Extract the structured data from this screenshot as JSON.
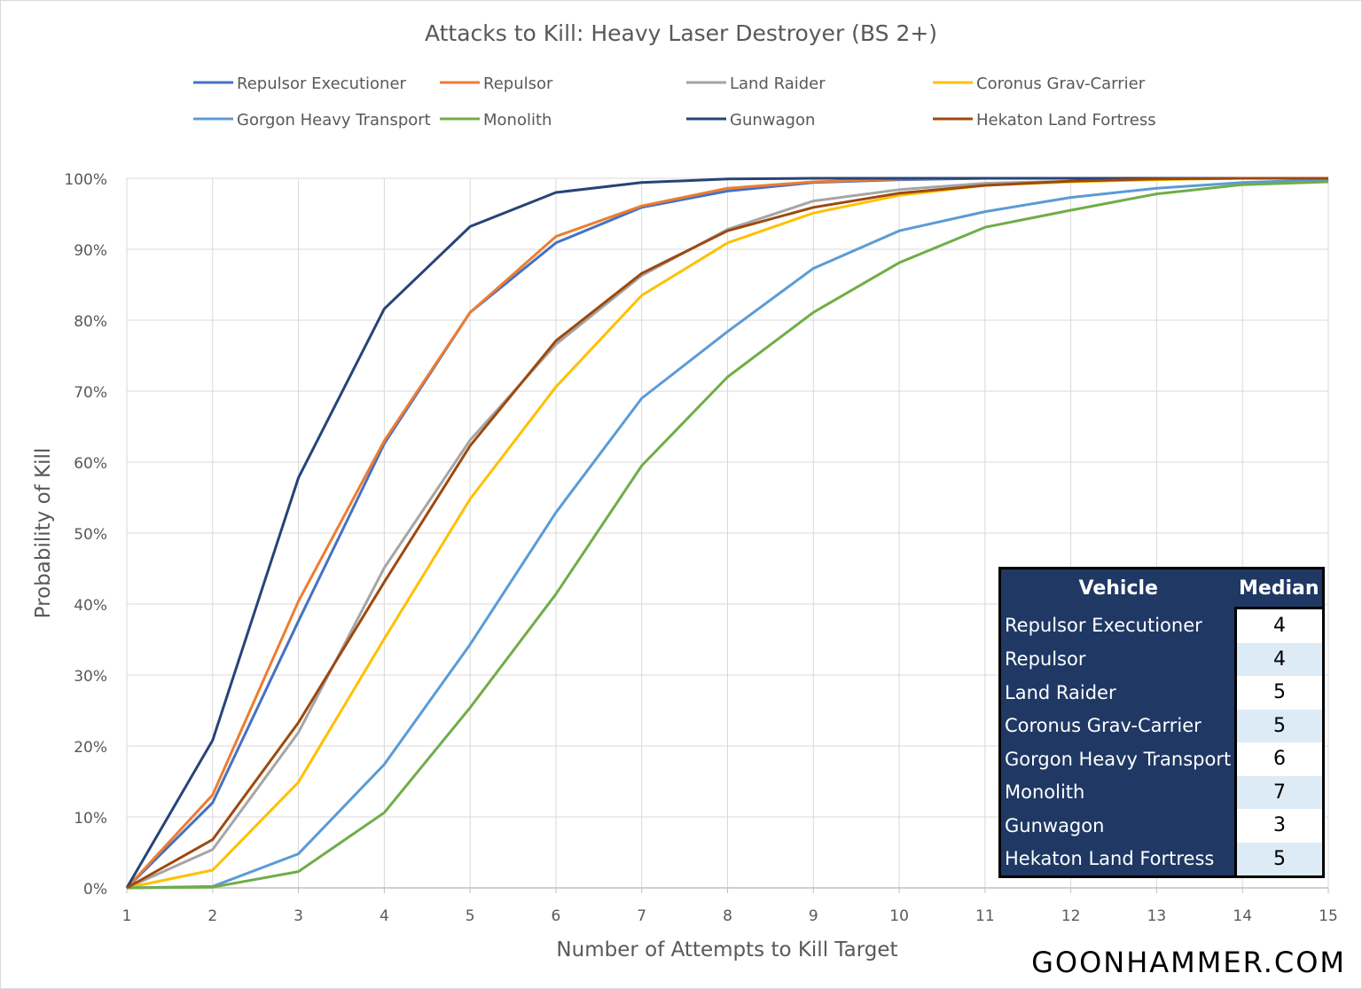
{
  "chart_data": {
    "type": "line",
    "title": "Attacks to Kill: Heavy Laser Destroyer (BS 2+)",
    "xlabel": "Number of Attempts to Kill Target",
    "ylabel": "Probability of Kill",
    "x": [
      1,
      2,
      3,
      4,
      5,
      6,
      7,
      8,
      9,
      10,
      11,
      12,
      13,
      14,
      15
    ],
    "xlim": [
      1,
      15
    ],
    "ylim": [
      0,
      100
    ],
    "yticks": [
      "0%",
      "10%",
      "20%",
      "30%",
      "40%",
      "50%",
      "60%",
      "70%",
      "80%",
      "90%",
      "100%"
    ],
    "grid": true,
    "legend_position": "top",
    "series": [
      {
        "name": "Repulsor Executioner",
        "color": "#4472C4",
        "values": [
          0,
          12,
          37.6,
          62.6,
          81.1,
          90.9,
          95.9,
          98.2,
          99.4,
          99.8,
          100,
          100,
          100,
          100,
          100
        ]
      },
      {
        "name": "Repulsor",
        "color": "#ED7D31",
        "values": [
          0,
          13.1,
          40.4,
          63,
          81.1,
          91.8,
          96.1,
          98.6,
          99.5,
          99.9,
          100,
          100,
          100,
          100,
          100
        ]
      },
      {
        "name": "Land Raider",
        "color": "#A5A5A5",
        "values": [
          0,
          5.4,
          21.9,
          45.1,
          63.1,
          76.6,
          86.3,
          92.8,
          96.8,
          98.4,
          99.3,
          99.6,
          99.9,
          100,
          100
        ]
      },
      {
        "name": "Coronus Grav-Carrier",
        "color": "#FFC000",
        "values": [
          0,
          2.5,
          14.9,
          35.1,
          54.8,
          70.6,
          83.5,
          90.9,
          95.1,
          97.6,
          99,
          99.5,
          99.8,
          100,
          100
        ]
      },
      {
        "name": "Gorgon Heavy Transport",
        "color": "#5B9BD5",
        "values": [
          0,
          0.2,
          4.8,
          17.4,
          34.3,
          52.9,
          69,
          78.4,
          87.3,
          92.6,
          95.3,
          97.3,
          98.6,
          99.4,
          99.8
        ]
      },
      {
        "name": "Monolith",
        "color": "#70AD47",
        "values": [
          0,
          0.1,
          2.3,
          10.6,
          25.4,
          41.4,
          59.5,
          72,
          81.1,
          88.1,
          93.1,
          95.5,
          97.8,
          99.1,
          99.5
        ]
      },
      {
        "name": "Gunwagon",
        "color": "#264478",
        "values": [
          0,
          20.8,
          57.8,
          81.6,
          93.2,
          98,
          99.4,
          99.9,
          100,
          100,
          100,
          100,
          100,
          100,
          100
        ]
      },
      {
        "name": "Hekaton Land Fortress",
        "color": "#9E480E",
        "values": [
          0,
          6.8,
          23.3,
          43.1,
          62.3,
          77.1,
          86.6,
          92.6,
          95.9,
          97.9,
          99,
          99.6,
          99.9,
          100,
          100
        ]
      }
    ]
  },
  "table": {
    "headers": [
      "Vehicle",
      "Median"
    ],
    "rows": [
      {
        "vehicle": "Repulsor Executioner",
        "median": "4"
      },
      {
        "vehicle": "Repulsor",
        "median": "4"
      },
      {
        "vehicle": "Land Raider",
        "median": "5"
      },
      {
        "vehicle": "Coronus Grav-Carrier",
        "median": "5"
      },
      {
        "vehicle": "Gorgon Heavy Transport",
        "median": "6"
      },
      {
        "vehicle": "Monolith",
        "median": "7"
      },
      {
        "vehicle": "Gunwagon",
        "median": "3"
      },
      {
        "vehicle": "Hekaton Land Fortress",
        "median": "5"
      }
    ]
  },
  "watermark": "GOONHAMMER.COM"
}
